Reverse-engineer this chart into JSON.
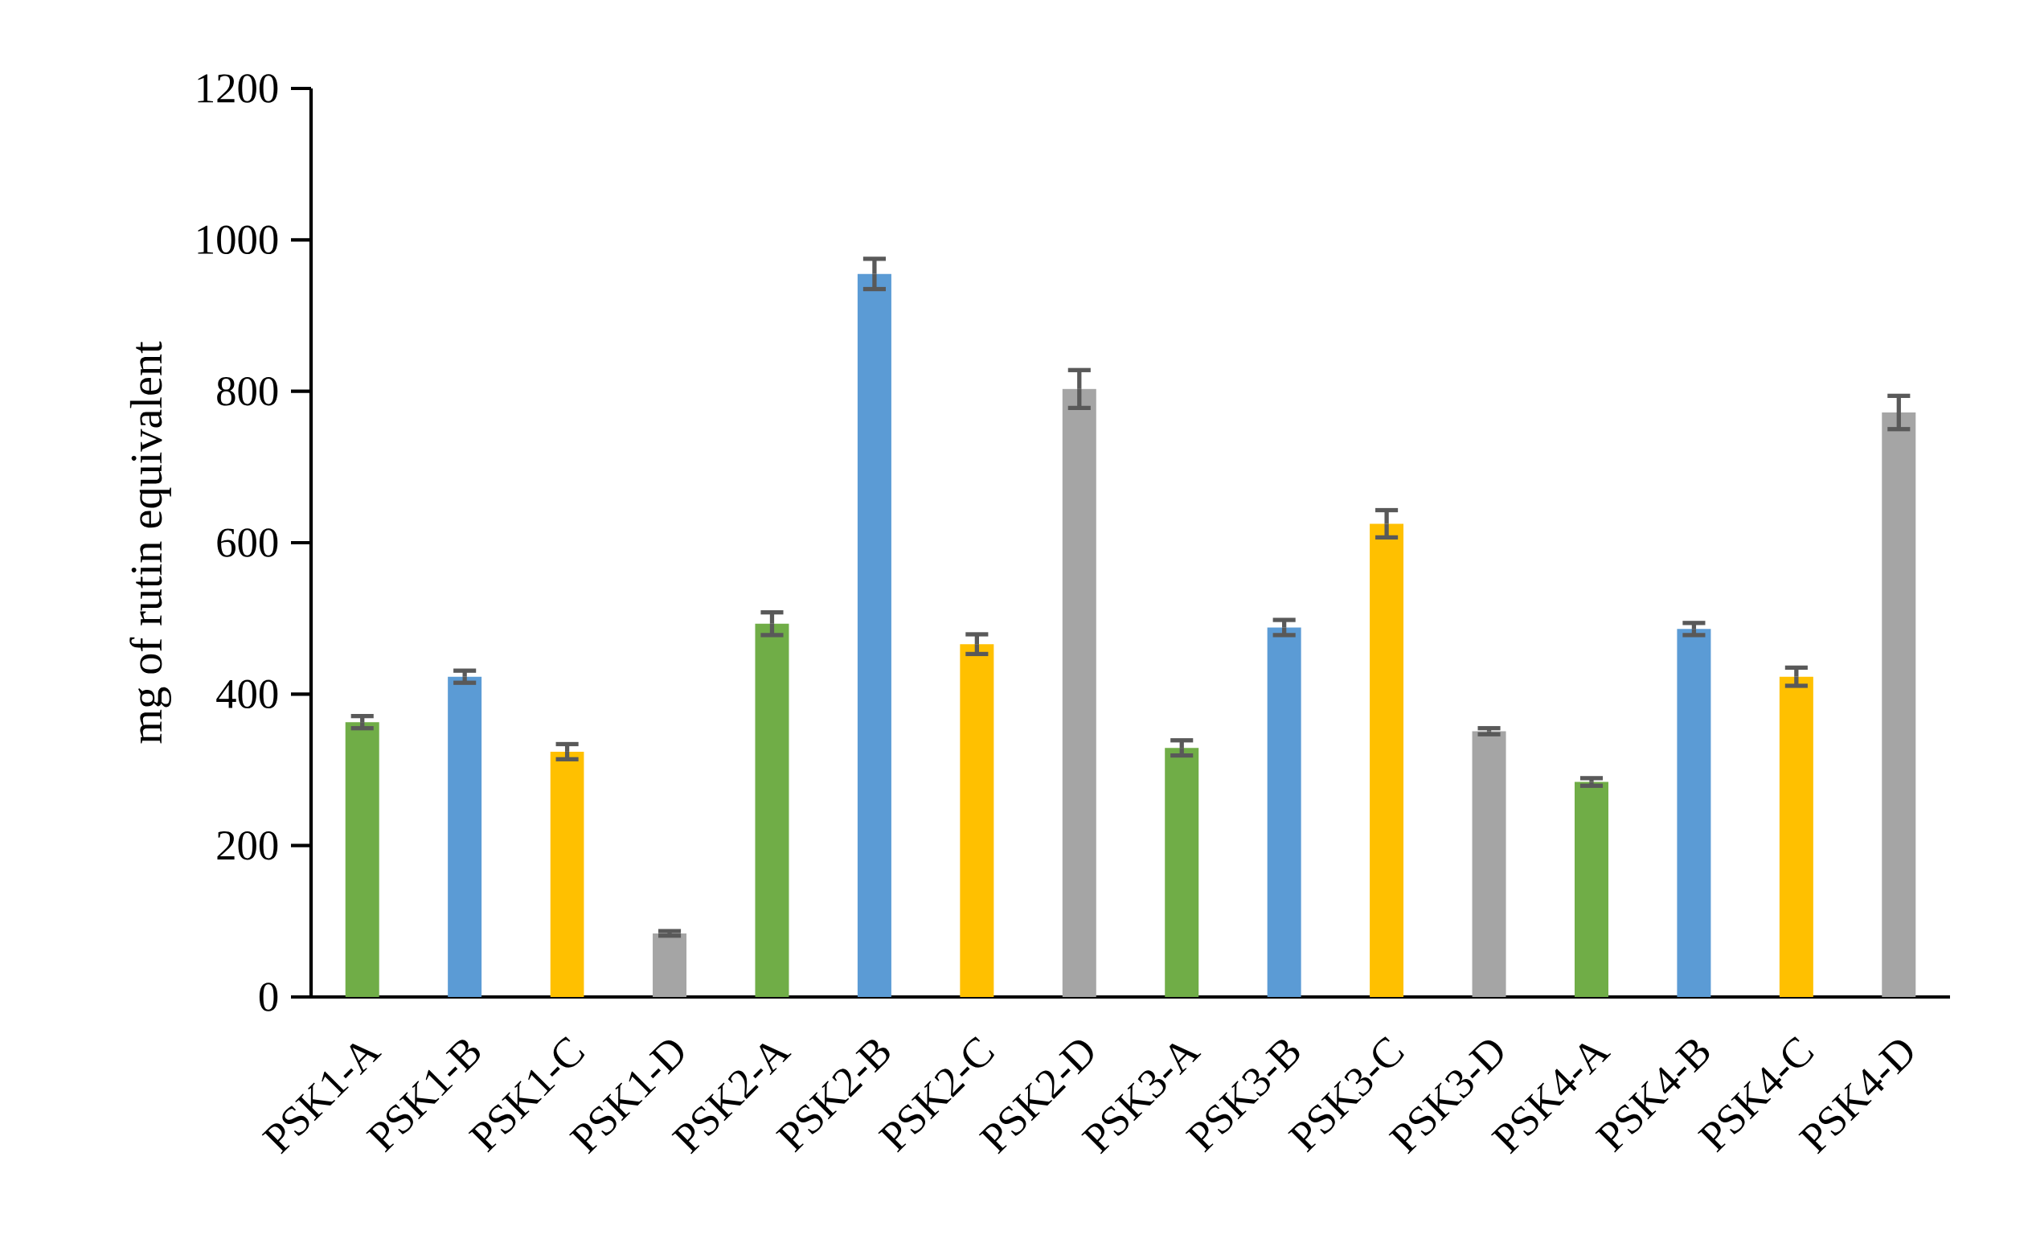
{
  "chart_data": {
    "type": "bar",
    "ylabel": "mg of rutin equivalent",
    "categories": [
      "PSK1-A",
      "PSK1-B",
      "PSK1-C",
      "PSK1-D",
      "PSK2-A",
      "PSK2-B",
      "PSK2-C",
      "PSK2-D",
      "PSK3-A",
      "PSK3-B",
      "PSK3-C",
      "PSK3-D",
      "PSK4-A",
      "PSK4-B",
      "PSK4-C",
      "PSK4-D"
    ],
    "values": [
      363,
      423,
      324,
      84,
      493,
      955,
      466,
      803,
      329,
      488,
      625,
      351,
      284,
      486,
      423,
      772
    ],
    "errors": [
      8,
      8,
      10,
      3,
      15,
      20,
      13,
      25,
      10,
      10,
      18,
      4,
      5,
      8,
      12,
      22
    ],
    "colors": [
      "#70ad47",
      "#5b9bd5",
      "#ffc000",
      "#a5a5a5",
      "#70ad47",
      "#5b9bd5",
      "#ffc000",
      "#a5a5a5",
      "#70ad47",
      "#5b9bd5",
      "#ffc000",
      "#a5a5a5",
      "#70ad47",
      "#5b9bd5",
      "#ffc000",
      "#a5a5a5"
    ],
    "ylim": [
      0,
      1200
    ],
    "yticks": [
      0,
      200,
      400,
      600,
      800,
      1000,
      1200
    ]
  }
}
